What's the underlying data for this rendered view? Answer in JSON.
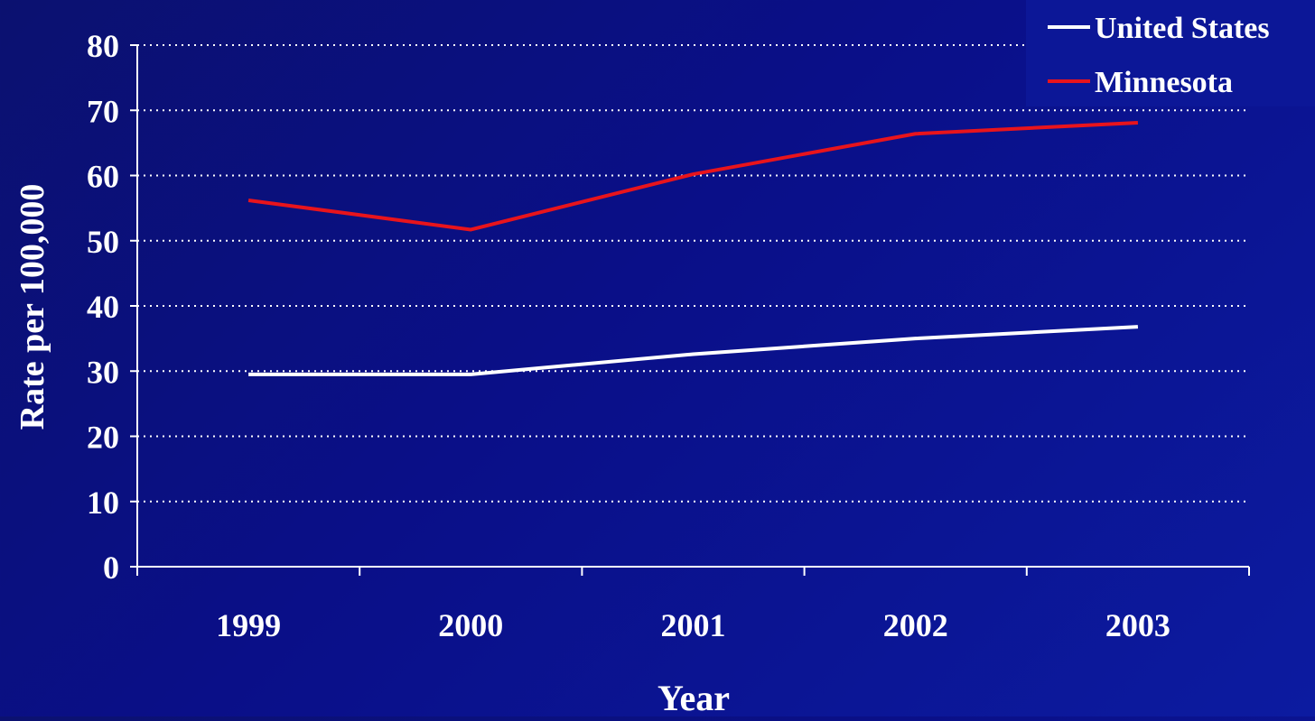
{
  "chart_data": {
    "type": "line",
    "title": "",
    "xlabel": "Year",
    "ylabel": "Rate per 100,000",
    "categories": [
      "1999",
      "2000",
      "2001",
      "2002",
      "2003"
    ],
    "ylim": [
      0,
      80
    ],
    "yticks": [
      0,
      10,
      20,
      30,
      40,
      50,
      60,
      70,
      80
    ],
    "grid": true,
    "legend_position": "top-right",
    "series": [
      {
        "name": "United States",
        "color": "#ffffff",
        "values": [
          29.5,
          29.5,
          32.6,
          35.0,
          36.8
        ]
      },
      {
        "name": "Minnesota",
        "color": "#e8141c",
        "values": [
          56.2,
          51.7,
          60.2,
          66.4,
          68.1
        ]
      }
    ]
  }
}
